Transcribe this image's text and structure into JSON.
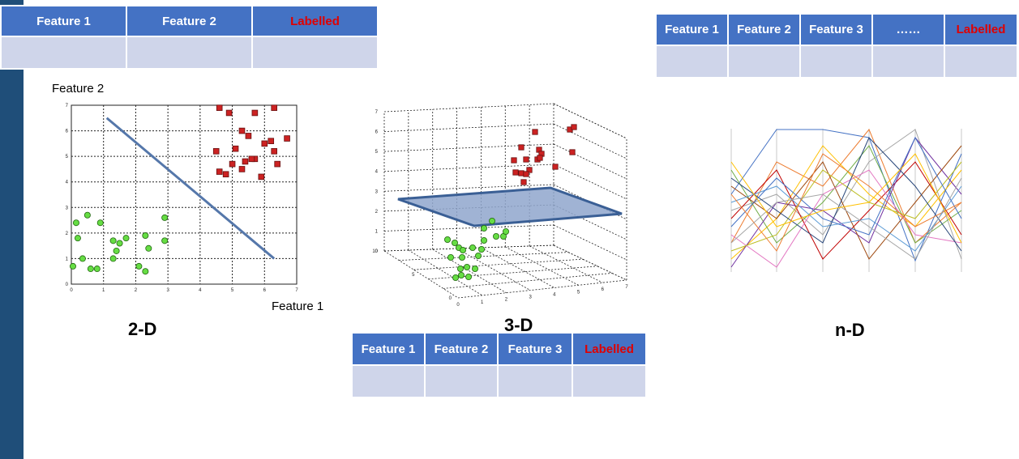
{
  "table_2d": {
    "headers": [
      "Feature 1",
      "Feature 2",
      "Labelled"
    ]
  },
  "table_nd": {
    "headers": [
      "Feature 1",
      "Feature 2",
      "Feature 3",
      "……",
      "Labelled"
    ]
  },
  "table_3d": {
    "headers": [
      "Feature 1",
      "Feature 2",
      "Feature 3",
      "Labelled"
    ]
  },
  "colors": {
    "header_bg": "#4472c4",
    "label_text": "#e00000",
    "body_cell": "#cfd5ea",
    "sidebar": "#1f4e79",
    "class_a": "#66dd44",
    "class_b": "#cc2222",
    "separator": "#5577aa"
  },
  "captions": {
    "two_d": "2-D",
    "three_d": "3-D",
    "n_d": "n-D"
  },
  "chart_data": [
    {
      "type": "scatter",
      "xlabel": "Feature 1",
      "ylabel": "Feature 2",
      "xlim": [
        0,
        7
      ],
      "ylim": [
        0,
        7
      ],
      "x_ticks": [
        0,
        1,
        2,
        3,
        4,
        5,
        6,
        7
      ],
      "y_ticks": [
        0,
        1,
        2,
        3,
        4,
        5,
        6,
        7
      ],
      "grid": true,
      "series": [
        {
          "marker": "circle",
          "color": "#66dd44",
          "points": [
            [
              0.05,
              0.7
            ],
            [
              0.2,
              1.8
            ],
            [
              0.15,
              2.4
            ],
            [
              0.5,
              2.7
            ],
            [
              0.35,
              1.0
            ],
            [
              0.6,
              0.6
            ],
            [
              0.8,
              0.6
            ],
            [
              0.9,
              2.4
            ],
            [
              1.3,
              1.0
            ],
            [
              1.4,
              1.3
            ],
            [
              1.5,
              1.6
            ],
            [
              1.3,
              1.7
            ],
            [
              1.7,
              1.8
            ],
            [
              2.1,
              0.7
            ],
            [
              2.3,
              0.5
            ],
            [
              2.3,
              1.9
            ],
            [
              2.4,
              1.4
            ],
            [
              2.9,
              2.6
            ],
            [
              2.9,
              1.7
            ]
          ]
        },
        {
          "marker": "square",
          "color": "#cc2222",
          "points": [
            [
              4.6,
              6.9
            ],
            [
              4.9,
              6.7
            ],
            [
              5.3,
              6.0
            ],
            [
              5.5,
              5.8
            ],
            [
              5.1,
              5.3
            ],
            [
              5.7,
              6.7
            ],
            [
              6.0,
              5.5
            ],
            [
              6.2,
              5.6
            ],
            [
              6.3,
              5.2
            ],
            [
              6.7,
              5.7
            ],
            [
              6.3,
              6.9
            ],
            [
              5.7,
              4.9
            ],
            [
              5.6,
              4.9
            ],
            [
              5.4,
              4.8
            ],
            [
              5.3,
              4.5
            ],
            [
              5.0,
              4.7
            ],
            [
              4.5,
              5.2
            ],
            [
              4.6,
              4.4
            ],
            [
              4.8,
              4.3
            ],
            [
              5.9,
              4.2
            ],
            [
              6.4,
              4.7
            ]
          ]
        },
        {
          "type": "line",
          "name": "",
          "color": "#5577aa",
          "points": [
            [
              1.1,
              6.5
            ],
            [
              6.3,
              1.0
            ]
          ]
        }
      ]
    },
    {
      "type": "scatter",
      "xlim": [
        0,
        7
      ],
      "ylim": [
        0,
        10
      ],
      "zlim": [
        0,
        7
      ],
      "x_ticks": [
        0,
        1,
        2,
        3,
        4,
        5,
        6,
        7
      ],
      "y_ticks": [
        0,
        5,
        10
      ],
      "z_ticks": [
        0,
        1,
        2,
        3,
        4,
        5,
        6,
        7
      ],
      "grid": true,
      "separating_plane": true
    },
    {
      "type": "line",
      "description": "parallel coordinates",
      "axes_count": 5
    }
  ]
}
